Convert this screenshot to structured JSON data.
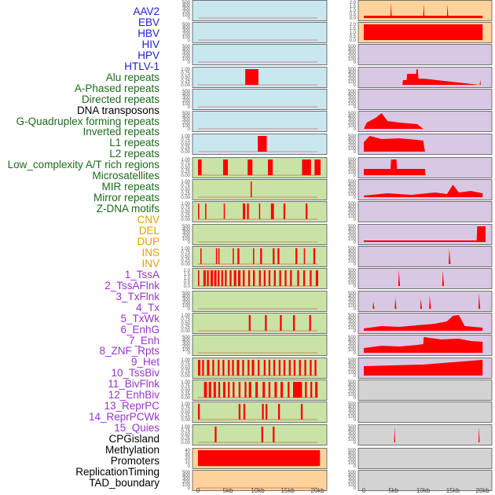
{
  "colors": {
    "virus": "#2020cc",
    "repeat": "#1a6b1a",
    "sv": "#e8a000",
    "chromhmm": "#9933cc",
    "other": "#000000",
    "bg_blue": "#c9e7ef",
    "bg_green": "#c8e3a5",
    "bg_orange": "#ffd39b",
    "bg_purple": "#d8c8e4",
    "bg_gray": "#d3d3d3",
    "bar": "#ff0000"
  },
  "labels": [
    {
      "text": "AAV2",
      "group": "virus"
    },
    {
      "text": "EBV",
      "group": "virus"
    },
    {
      "text": "HBV",
      "group": "virus"
    },
    {
      "text": "HIV",
      "group": "virus"
    },
    {
      "text": "HPV",
      "group": "virus"
    },
    {
      "text": "HTLV-1",
      "group": "virus"
    },
    {
      "text": "Alu repeats",
      "group": "repeat"
    },
    {
      "text": "A-Phased repeats",
      "group": "repeat"
    },
    {
      "text": "Directed repeats",
      "group": "repeat"
    },
    {
      "text": "DNA transposons",
      "group": "other"
    },
    {
      "text": "G-Quadruplex forming repeats",
      "group": "repeat"
    },
    {
      "text": "Inverted repeats",
      "group": "repeat"
    },
    {
      "text": "L1 repeats",
      "group": "repeat"
    },
    {
      "text": "L2 repeats",
      "group": "repeat"
    },
    {
      "text": "Low_complexity A/T rich regions",
      "group": "repeat"
    },
    {
      "text": "Microsatellites",
      "group": "repeat"
    },
    {
      "text": "MIR repeats",
      "group": "repeat"
    },
    {
      "text": "Mirror repeats",
      "group": "repeat"
    },
    {
      "text": "Z-DNA motifs",
      "group": "repeat"
    },
    {
      "text": "CNV",
      "group": "sv"
    },
    {
      "text": "DEL",
      "group": "sv"
    },
    {
      "text": "DUP",
      "group": "sv"
    },
    {
      "text": "INS",
      "group": "sv"
    },
    {
      "text": "INV",
      "group": "sv"
    },
    {
      "text": "1_TssA",
      "group": "chromhmm"
    },
    {
      "text": "2_TssAFlnk",
      "group": "chromhmm"
    },
    {
      "text": "3_TxFlnk",
      "group": "chromhmm"
    },
    {
      "text": "4_Tx",
      "group": "chromhmm"
    },
    {
      "text": "5_TxWk",
      "group": "chromhmm"
    },
    {
      "text": "6_EnhG",
      "group": "chromhmm"
    },
    {
      "text": "7_Enh",
      "group": "chromhmm"
    },
    {
      "text": "8_ZNF_Rpts",
      "group": "chromhmm"
    },
    {
      "text": "9_Het",
      "group": "chromhmm"
    },
    {
      "text": "10_TssBiv",
      "group": "chromhmm"
    },
    {
      "text": "11_BivFlnk",
      "group": "chromhmm"
    },
    {
      "text": "12_EnhBiv",
      "group": "chromhmm"
    },
    {
      "text": "13_ReprPC",
      "group": "chromhmm"
    },
    {
      "text": "14_ReprPCWk",
      "group": "chromhmm"
    },
    {
      "text": "15_Quies",
      "group": "chromhmm"
    },
    {
      "text": "CPGisland",
      "group": "other"
    },
    {
      "text": "Methylation",
      "group": "other"
    },
    {
      "text": "Promoters",
      "group": "other"
    },
    {
      "text": "ReplicationTiming",
      "group": "other"
    },
    {
      "text": "TAD_boundary",
      "group": "other"
    }
  ],
  "chart_data": {
    "type": "bar",
    "title": "",
    "xlabel": "",
    "ylabel": "",
    "x_range": [
      0,
      20500
    ],
    "x_ticks": [
      "0",
      "5kb",
      "10kb",
      "15kb",
      "20kb"
    ],
    "x_tick_values": [
      0,
      5000,
      10000,
      15000,
      20000
    ],
    "default_ticks": [
      "0",
      "100",
      "200",
      "300",
      "400",
      "500"
    ],
    "fraction_ticks": [
      "0.00",
      "0.25",
      "0.50",
      "0.75",
      "1.00"
    ],
    "left_panels": [
      {
        "name": "AAV2",
        "bg": "bg_blue",
        "ticks": "default",
        "intervals": []
      },
      {
        "name": "EBV",
        "bg": "bg_blue",
        "ticks": "default",
        "intervals": []
      },
      {
        "name": "HBV",
        "bg": "bg_blue",
        "ticks": "default",
        "intervals": []
      },
      {
        "name": "HIV/HPV",
        "bg": "bg_blue",
        "ticks": "fraction",
        "intervals": [
          [
            7900,
            10100
          ]
        ]
      },
      {
        "name": "HTLV-1/Alu repeats",
        "bg": "bg_blue",
        "ticks": "default",
        "intervals": []
      },
      {
        "name": "A-Phased/Directed repeats",
        "bg": "bg_blue",
        "ticks": "default",
        "intervals": []
      },
      {
        "name": "DNA transposons/G-Quadruplex",
        "bg": "bg_blue",
        "ticks": "fraction",
        "intervals": [
          [
            10000,
            11500
          ]
        ]
      },
      {
        "name": "Inverted/L1 repeats",
        "bg": "bg_green",
        "ticks": "fraction",
        "intervals": [
          [
            0,
            600
          ],
          [
            4200,
            5000
          ],
          [
            8300,
            9100
          ],
          [
            11700,
            12500
          ],
          [
            17400,
            18900
          ],
          [
            19500,
            20500
          ]
        ]
      },
      {
        "name": "L2/Low_complexity",
        "bg": "bg_green",
        "ticks": "fraction",
        "intervals": [
          [
            8800,
            9000
          ]
        ]
      },
      {
        "name": "Microsatellites/MIR repeats",
        "bg": "bg_green",
        "ticks": "fraction",
        "intervals": [
          [
            0,
            200
          ],
          [
            1200,
            1400
          ],
          [
            4300,
            4500
          ],
          [
            7500,
            7900
          ],
          [
            8200,
            8500
          ],
          [
            10200,
            10400
          ],
          [
            12200,
            12700
          ],
          [
            14300,
            14600
          ],
          [
            18000,
            18300
          ]
        ]
      },
      {
        "name": "Mirror repeats/Z-DNA motifs",
        "bg": "bg_green",
        "ticks": "default",
        "intervals": []
      },
      {
        "name": "CNV/DEL",
        "bg": "bg_green",
        "ticks": "fraction",
        "intervals": [
          [
            400,
            600
          ],
          [
            3000,
            3200
          ],
          [
            3400,
            3600
          ],
          [
            5800,
            6000
          ],
          [
            6600,
            6900
          ],
          [
            9200,
            9400
          ],
          [
            10400,
            10700
          ],
          [
            12500,
            12800
          ],
          [
            13300,
            13600
          ],
          [
            16300,
            16600
          ],
          [
            17700,
            17900
          ],
          [
            19300,
            19600
          ]
        ]
      },
      {
        "name": "DUP/INS",
        "bg": "bg_green",
        "ticks": "int2",
        "intervals": [
          [
            0,
            200
          ],
          [
            900,
            1300
          ],
          [
            1500,
            1800
          ],
          [
            2100,
            2500
          ],
          [
            2700,
            3100
          ],
          [
            3300,
            3600
          ],
          [
            3900,
            4200
          ],
          [
            4500,
            4800
          ],
          [
            5300,
            5600
          ],
          [
            6000,
            6400
          ],
          [
            6700,
            7100
          ],
          [
            7500,
            7800
          ],
          [
            8400,
            8700
          ],
          [
            9200,
            9500
          ],
          [
            10200,
            10500
          ],
          [
            11000,
            11300
          ],
          [
            11800,
            12100
          ],
          [
            12700,
            13000
          ],
          [
            13600,
            13900
          ],
          [
            14500,
            14800
          ],
          [
            15400,
            15700
          ],
          [
            16600,
            16900
          ],
          [
            17600,
            17900
          ],
          [
            18700,
            19000
          ],
          [
            19700,
            20100
          ]
        ]
      },
      {
        "name": "INV/1_TssA",
        "bg": "bg_green",
        "ticks": "default",
        "intervals": []
      },
      {
        "name": "2_TssAFlnk/3_TxFlnk",
        "bg": "bg_green",
        "ticks": "fraction",
        "intervals": [
          [
            8500,
            8800
          ],
          [
            11200,
            11500
          ],
          [
            13700,
            14000
          ],
          [
            15900,
            16200
          ],
          [
            18600,
            18900
          ]
        ]
      },
      {
        "name": "4_Tx/5_TxWk",
        "bg": "bg_green",
        "ticks": "default",
        "intervals": []
      },
      {
        "name": "6_EnhG/7_Enh",
        "bg": "bg_green",
        "ticks": "fraction",
        "intervals": [
          [
            0,
            400
          ],
          [
            700,
            1000
          ],
          [
            1500,
            1900
          ],
          [
            2400,
            2700
          ],
          [
            3300,
            3600
          ],
          [
            4100,
            4400
          ],
          [
            5000,
            5300
          ],
          [
            5700,
            6000
          ],
          [
            6500,
            6900
          ],
          [
            7400,
            7700
          ],
          [
            8300,
            8600
          ],
          [
            9000,
            9400
          ],
          [
            10000,
            10300
          ],
          [
            11000,
            11300
          ],
          [
            11800,
            12100
          ],
          [
            12600,
            12900
          ],
          [
            13500,
            13800
          ],
          [
            14300,
            14600
          ],
          [
            15200,
            15500
          ],
          [
            16000,
            16300
          ],
          [
            16900,
            17200
          ],
          [
            17800,
            18100
          ],
          [
            18700,
            19000
          ],
          [
            19500,
            19800
          ]
        ]
      },
      {
        "name": "8_ZNF_Rpts/9_Het",
        "bg": "bg_green",
        "ticks": "fraction",
        "intervals": [
          [
            1000,
            1500
          ],
          [
            1800,
            2200
          ],
          [
            2600,
            3000
          ],
          [
            3400,
            3700
          ],
          [
            4200,
            4600
          ],
          [
            5000,
            5300
          ],
          [
            5800,
            6100
          ],
          [
            6800,
            7100
          ],
          [
            7800,
            8100
          ],
          [
            8500,
            8900
          ],
          [
            9600,
            10000
          ],
          [
            10800,
            11200
          ],
          [
            11800,
            12100
          ],
          [
            12800,
            13200
          ],
          [
            13800,
            14200
          ],
          [
            15000,
            15300
          ],
          [
            15900,
            17400
          ],
          [
            17900,
            18200
          ],
          [
            18800,
            19100
          ],
          [
            19600,
            20000
          ]
        ]
      },
      {
        "name": "10_TssBiv/11_BivFlnk",
        "bg": "bg_green",
        "ticks": "fraction",
        "intervals": [
          [
            0,
            300
          ],
          [
            6800,
            7100
          ],
          [
            7600,
            7900
          ],
          [
            10700,
            11000
          ],
          [
            11300,
            11600
          ],
          [
            13400,
            13700
          ],
          [
            17200,
            17500
          ]
        ]
      },
      {
        "name": "12_EnhBiv/13_ReprPC",
        "bg": "bg_green",
        "ticks": "fraction",
        "intervals": [
          [
            2800,
            3100
          ],
          [
            10600,
            10900
          ],
          [
            12500,
            12800
          ]
        ]
      },
      {
        "name": "14_ReprPCWk/15_Quies",
        "bg": "bg_orange",
        "ticks": "int40",
        "intervals": [
          [
            0,
            20400
          ]
        ]
      },
      {
        "name": "CPGisland/Methylation",
        "bg": "bg_orange",
        "ticks": "default",
        "intervals": []
      },
      {
        "name": "Promoters/ReplicationTiming",
        "bg": "bg_orange",
        "ticks": "default",
        "intervals": []
      }
    ]
  }
}
